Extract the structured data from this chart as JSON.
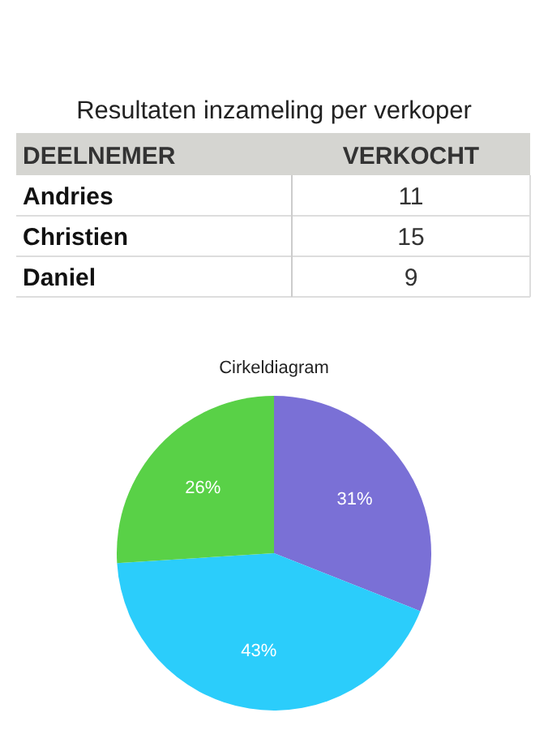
{
  "chart_data": [
    {
      "type": "other",
      "title": "Resultaten inzameling per verkoper",
      "xlabel": "DEELNEMER",
      "ylabel": "VERKOCHT",
      "categories": [
        "Andries",
        "Christien",
        "Daniel"
      ],
      "values": [
        11,
        15,
        9
      ],
      "data_labels": true
    },
    {
      "type": "pie",
      "title": "Cirkeldiagram",
      "categories": [
        null,
        null,
        null
      ],
      "values": [
        31,
        43,
        26
      ],
      "colors": [
        "#7a70d6",
        "#2bcdfb",
        "#59d147"
      ],
      "value_labels": [
        "31%",
        "43%",
        "26%"
      ]
    }
  ]
}
